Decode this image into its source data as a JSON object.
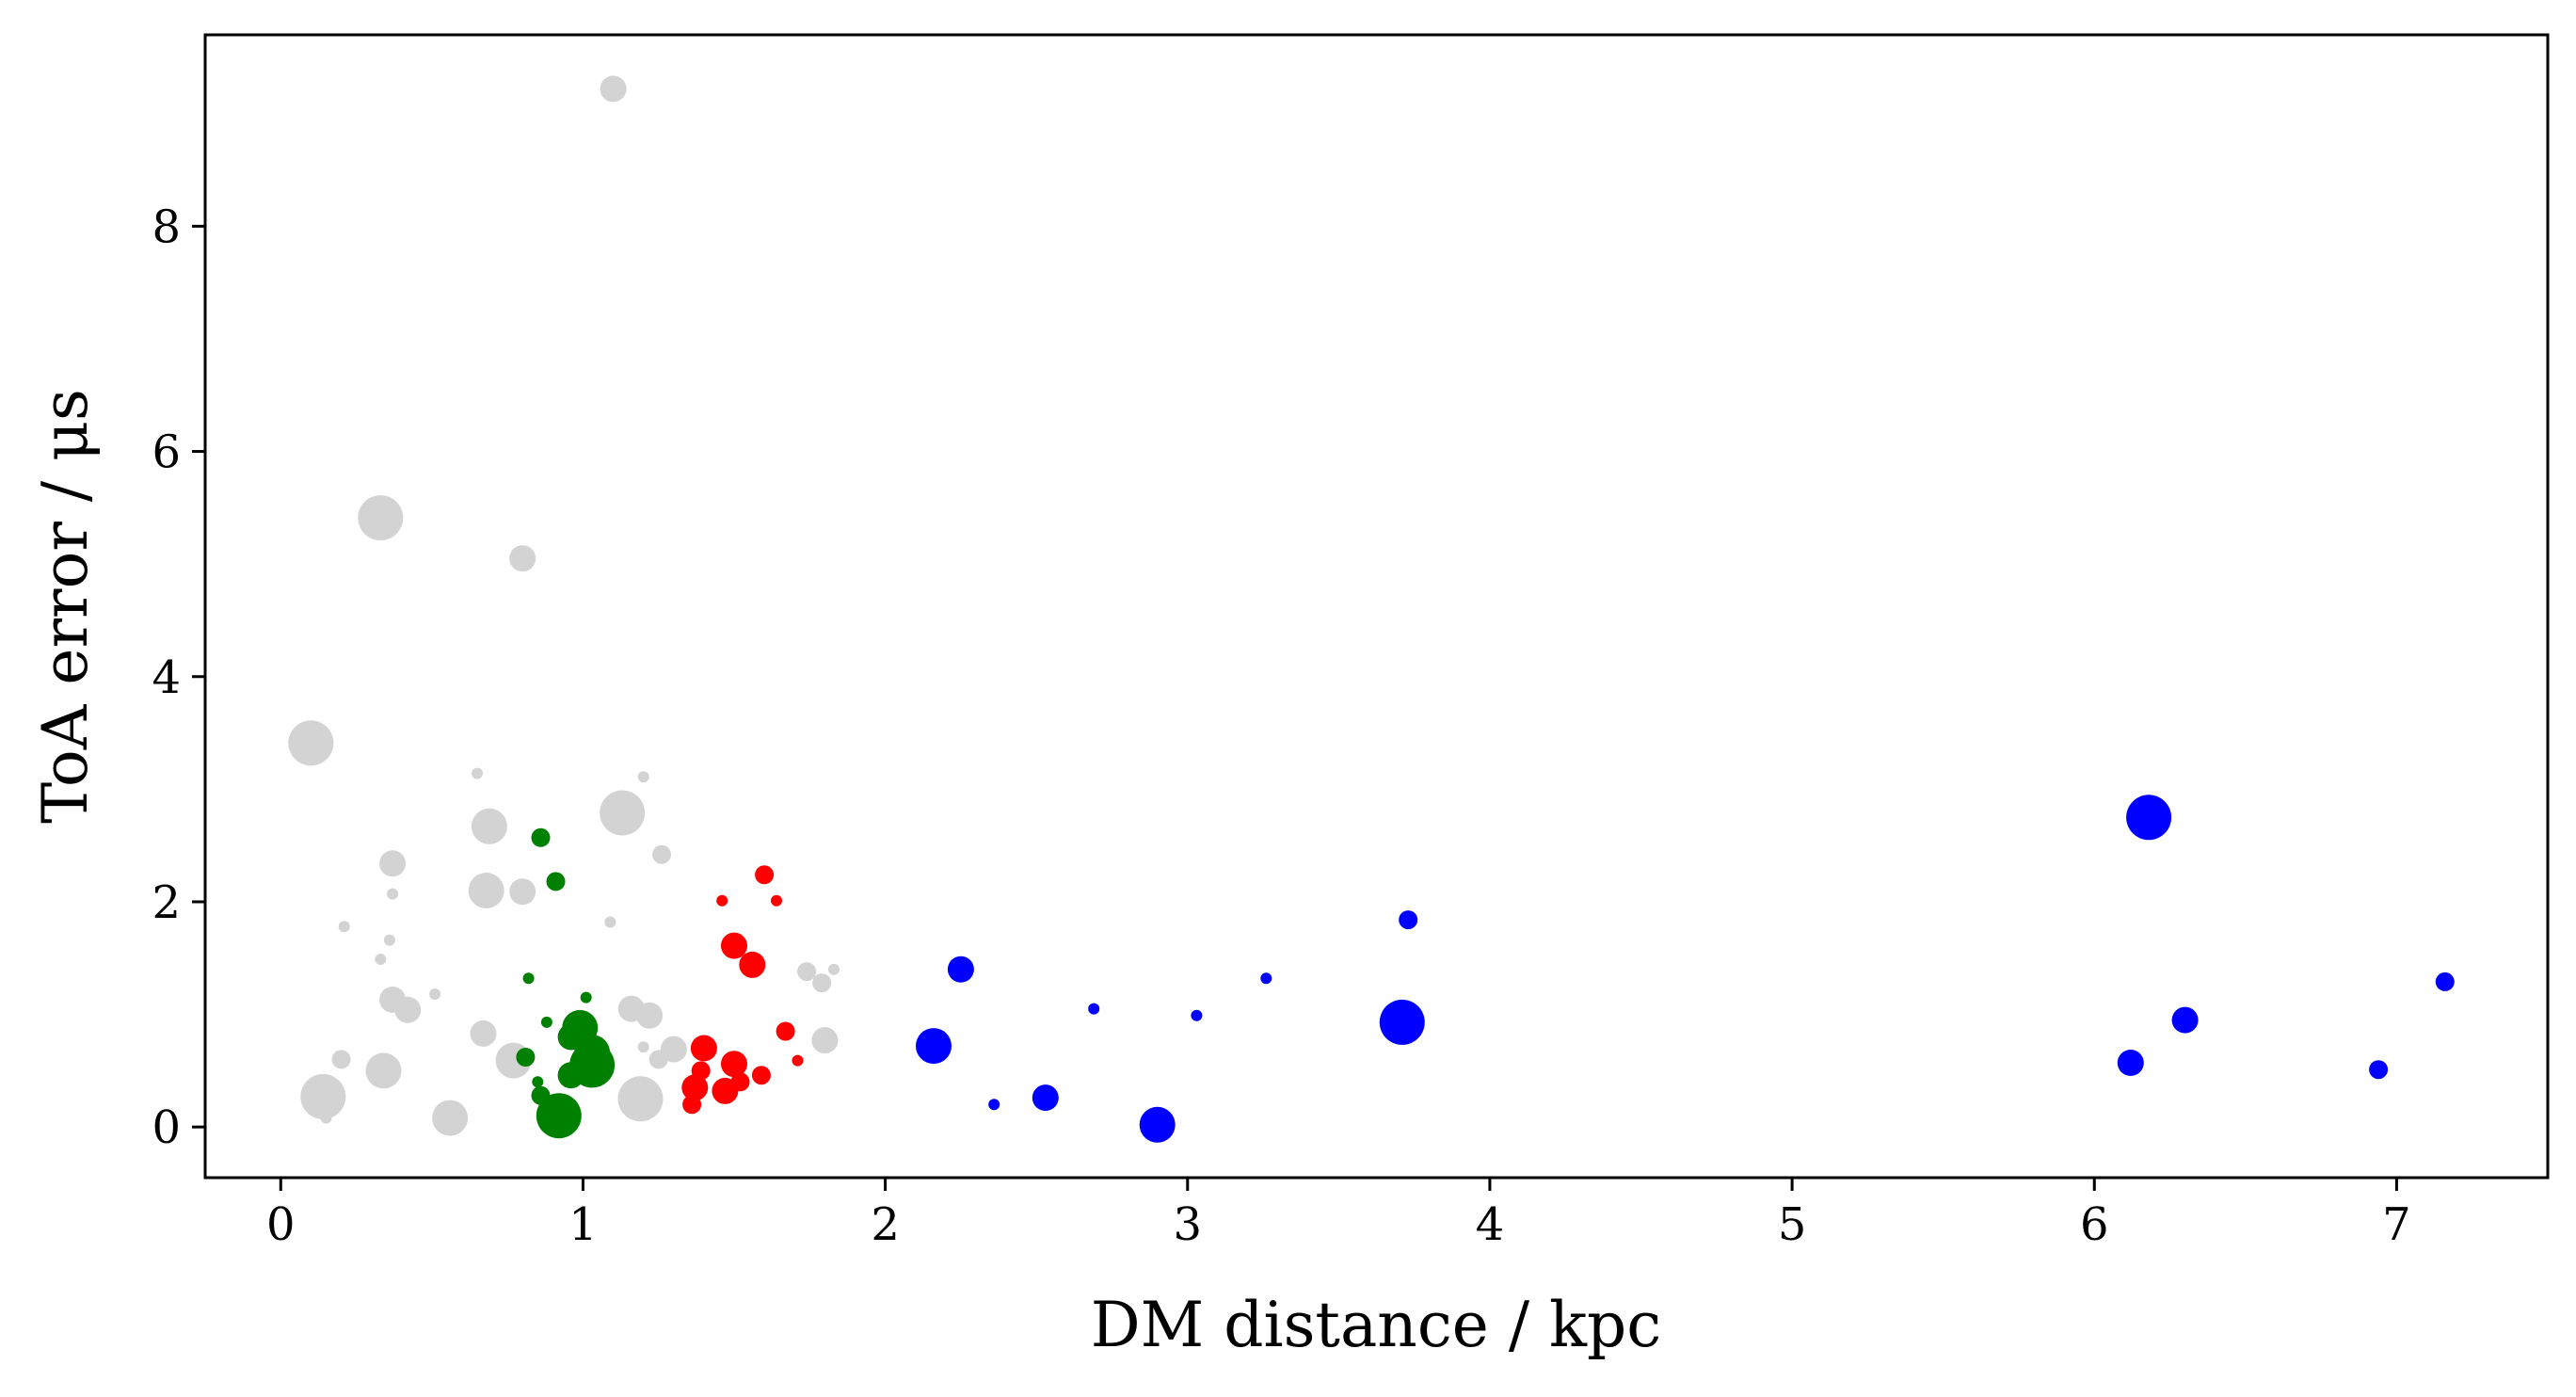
{
  "chart_data": {
    "type": "scatter",
    "xlabel": "DM distance / kpc",
    "ylabel": "ToA error / μs",
    "xlim": [
      -0.25,
      7.5
    ],
    "ylim": [
      -0.45,
      9.7
    ],
    "xticks": [
      "0",
      "1",
      "2",
      "3",
      "4",
      "5",
      "6",
      "7"
    ],
    "yticks": [
      "0",
      "2",
      "4",
      "6",
      "8"
    ],
    "grid": false,
    "legend": "none",
    "series": [
      {
        "color": "#d3d3d3",
        "points": [
          {
            "x": 1.1,
            "y": 9.22,
            "s": 3
          },
          {
            "x": 0.33,
            "y": 5.41,
            "s": 5
          },
          {
            "x": 0.8,
            "y": 5.05,
            "s": 3
          },
          {
            "x": 0.1,
            "y": 3.41,
            "s": 5
          },
          {
            "x": 0.65,
            "y": 3.14,
            "s": 1
          },
          {
            "x": 1.2,
            "y": 3.11,
            "s": 1
          },
          {
            "x": 1.13,
            "y": 2.79,
            "s": 5
          },
          {
            "x": 0.69,
            "y": 2.67,
            "s": 4
          },
          {
            "x": 1.26,
            "y": 2.42,
            "s": 2
          },
          {
            "x": 0.37,
            "y": 2.34,
            "s": 3
          },
          {
            "x": 0.68,
            "y": 2.1,
            "s": 4
          },
          {
            "x": 0.8,
            "y": 2.09,
            "s": 3
          },
          {
            "x": 0.37,
            "y": 2.07,
            "s": 1
          },
          {
            "x": 1.09,
            "y": 1.82,
            "s": 1
          },
          {
            "x": 0.21,
            "y": 1.78,
            "s": 1
          },
          {
            "x": 0.36,
            "y": 1.66,
            "s": 1
          },
          {
            "x": 0.33,
            "y": 1.49,
            "s": 1
          },
          {
            "x": 1.74,
            "y": 1.38,
            "s": 2
          },
          {
            "x": 1.83,
            "y": 1.4,
            "s": 1
          },
          {
            "x": 1.79,
            "y": 1.28,
            "s": 2
          },
          {
            "x": 0.51,
            "y": 1.18,
            "s": 1
          },
          {
            "x": 0.37,
            "y": 1.13,
            "s": 3
          },
          {
            "x": 0.42,
            "y": 1.04,
            "s": 3
          },
          {
            "x": 1.16,
            "y": 1.05,
            "s": 3
          },
          {
            "x": 1.22,
            "y": 0.99,
            "s": 3
          },
          {
            "x": 0.67,
            "y": 0.83,
            "s": 3
          },
          {
            "x": 1.8,
            "y": 0.77,
            "s": 3
          },
          {
            "x": 1.2,
            "y": 0.71,
            "s": 1
          },
          {
            "x": 1.3,
            "y": 0.69,
            "s": 3
          },
          {
            "x": 1.25,
            "y": 0.6,
            "s": 2
          },
          {
            "x": 0.2,
            "y": 0.6,
            "s": 2
          },
          {
            "x": 0.77,
            "y": 0.59,
            "s": 4
          },
          {
            "x": 0.34,
            "y": 0.5,
            "s": 4
          },
          {
            "x": 0.14,
            "y": 0.27,
            "s": 5
          },
          {
            "x": 1.19,
            "y": 0.25,
            "s": 5
          },
          {
            "x": 0.15,
            "y": 0.08,
            "s": 1
          },
          {
            "x": 0.56,
            "y": 0.08,
            "s": 4
          }
        ]
      },
      {
        "color": "#008000",
        "points": [
          {
            "x": 0.86,
            "y": 2.57,
            "s": 2
          },
          {
            "x": 0.91,
            "y": 2.18,
            "s": 2
          },
          {
            "x": 0.82,
            "y": 1.32,
            "s": 1
          },
          {
            "x": 1.01,
            "y": 1.15,
            "s": 1
          },
          {
            "x": 0.88,
            "y": 0.93,
            "s": 1
          },
          {
            "x": 0.99,
            "y": 0.88,
            "s": 4
          },
          {
            "x": 0.96,
            "y": 0.8,
            "s": 3
          },
          {
            "x": 1.03,
            "y": 0.66,
            "s": 4
          },
          {
            "x": 0.81,
            "y": 0.62,
            "s": 2
          },
          {
            "x": 1.03,
            "y": 0.55,
            "s": 5
          },
          {
            "x": 0.96,
            "y": 0.46,
            "s": 3
          },
          {
            "x": 0.85,
            "y": 0.4,
            "s": 1
          },
          {
            "x": 0.86,
            "y": 0.28,
            "s": 2
          },
          {
            "x": 0.92,
            "y": 0.1,
            "s": 5
          }
        ]
      },
      {
        "color": "#ff0000",
        "points": [
          {
            "x": 1.6,
            "y": 2.24,
            "s": 2
          },
          {
            "x": 1.46,
            "y": 2.01,
            "s": 1
          },
          {
            "x": 1.64,
            "y": 2.01,
            "s": 1
          },
          {
            "x": 1.5,
            "y": 1.61,
            "s": 3
          },
          {
            "x": 1.56,
            "y": 1.44,
            "s": 3
          },
          {
            "x": 1.67,
            "y": 0.85,
            "s": 2
          },
          {
            "x": 1.4,
            "y": 0.7,
            "s": 3
          },
          {
            "x": 1.71,
            "y": 0.59,
            "s": 1
          },
          {
            "x": 1.5,
            "y": 0.56,
            "s": 3
          },
          {
            "x": 1.39,
            "y": 0.5,
            "s": 2
          },
          {
            "x": 1.59,
            "y": 0.46,
            "s": 2
          },
          {
            "x": 1.52,
            "y": 0.4,
            "s": 2
          },
          {
            "x": 1.37,
            "y": 0.35,
            "s": 3
          },
          {
            "x": 1.47,
            "y": 0.32,
            "s": 3
          },
          {
            "x": 1.36,
            "y": 0.2,
            "s": 2
          }
        ]
      },
      {
        "color": "#0000ff",
        "points": [
          {
            "x": 6.18,
            "y": 2.75,
            "s": 5
          },
          {
            "x": 3.73,
            "y": 1.84,
            "s": 2
          },
          {
            "x": 2.25,
            "y": 1.4,
            "s": 3
          },
          {
            "x": 3.26,
            "y": 1.32,
            "s": 1
          },
          {
            "x": 7.16,
            "y": 1.29,
            "s": 2
          },
          {
            "x": 2.69,
            "y": 1.05,
            "s": 1
          },
          {
            "x": 3.03,
            "y": 0.99,
            "s": 1
          },
          {
            "x": 6.3,
            "y": 0.95,
            "s": 3
          },
          {
            "x": 3.71,
            "y": 0.93,
            "s": 5
          },
          {
            "x": 2.16,
            "y": 0.72,
            "s": 4
          },
          {
            "x": 6.12,
            "y": 0.57,
            "s": 3
          },
          {
            "x": 6.94,
            "y": 0.51,
            "s": 2
          },
          {
            "x": 2.53,
            "y": 0.26,
            "s": 3
          },
          {
            "x": 2.36,
            "y": 0.2,
            "s": 1
          },
          {
            "x": 2.9,
            "y": 0.02,
            "s": 4
          }
        ]
      }
    ]
  }
}
